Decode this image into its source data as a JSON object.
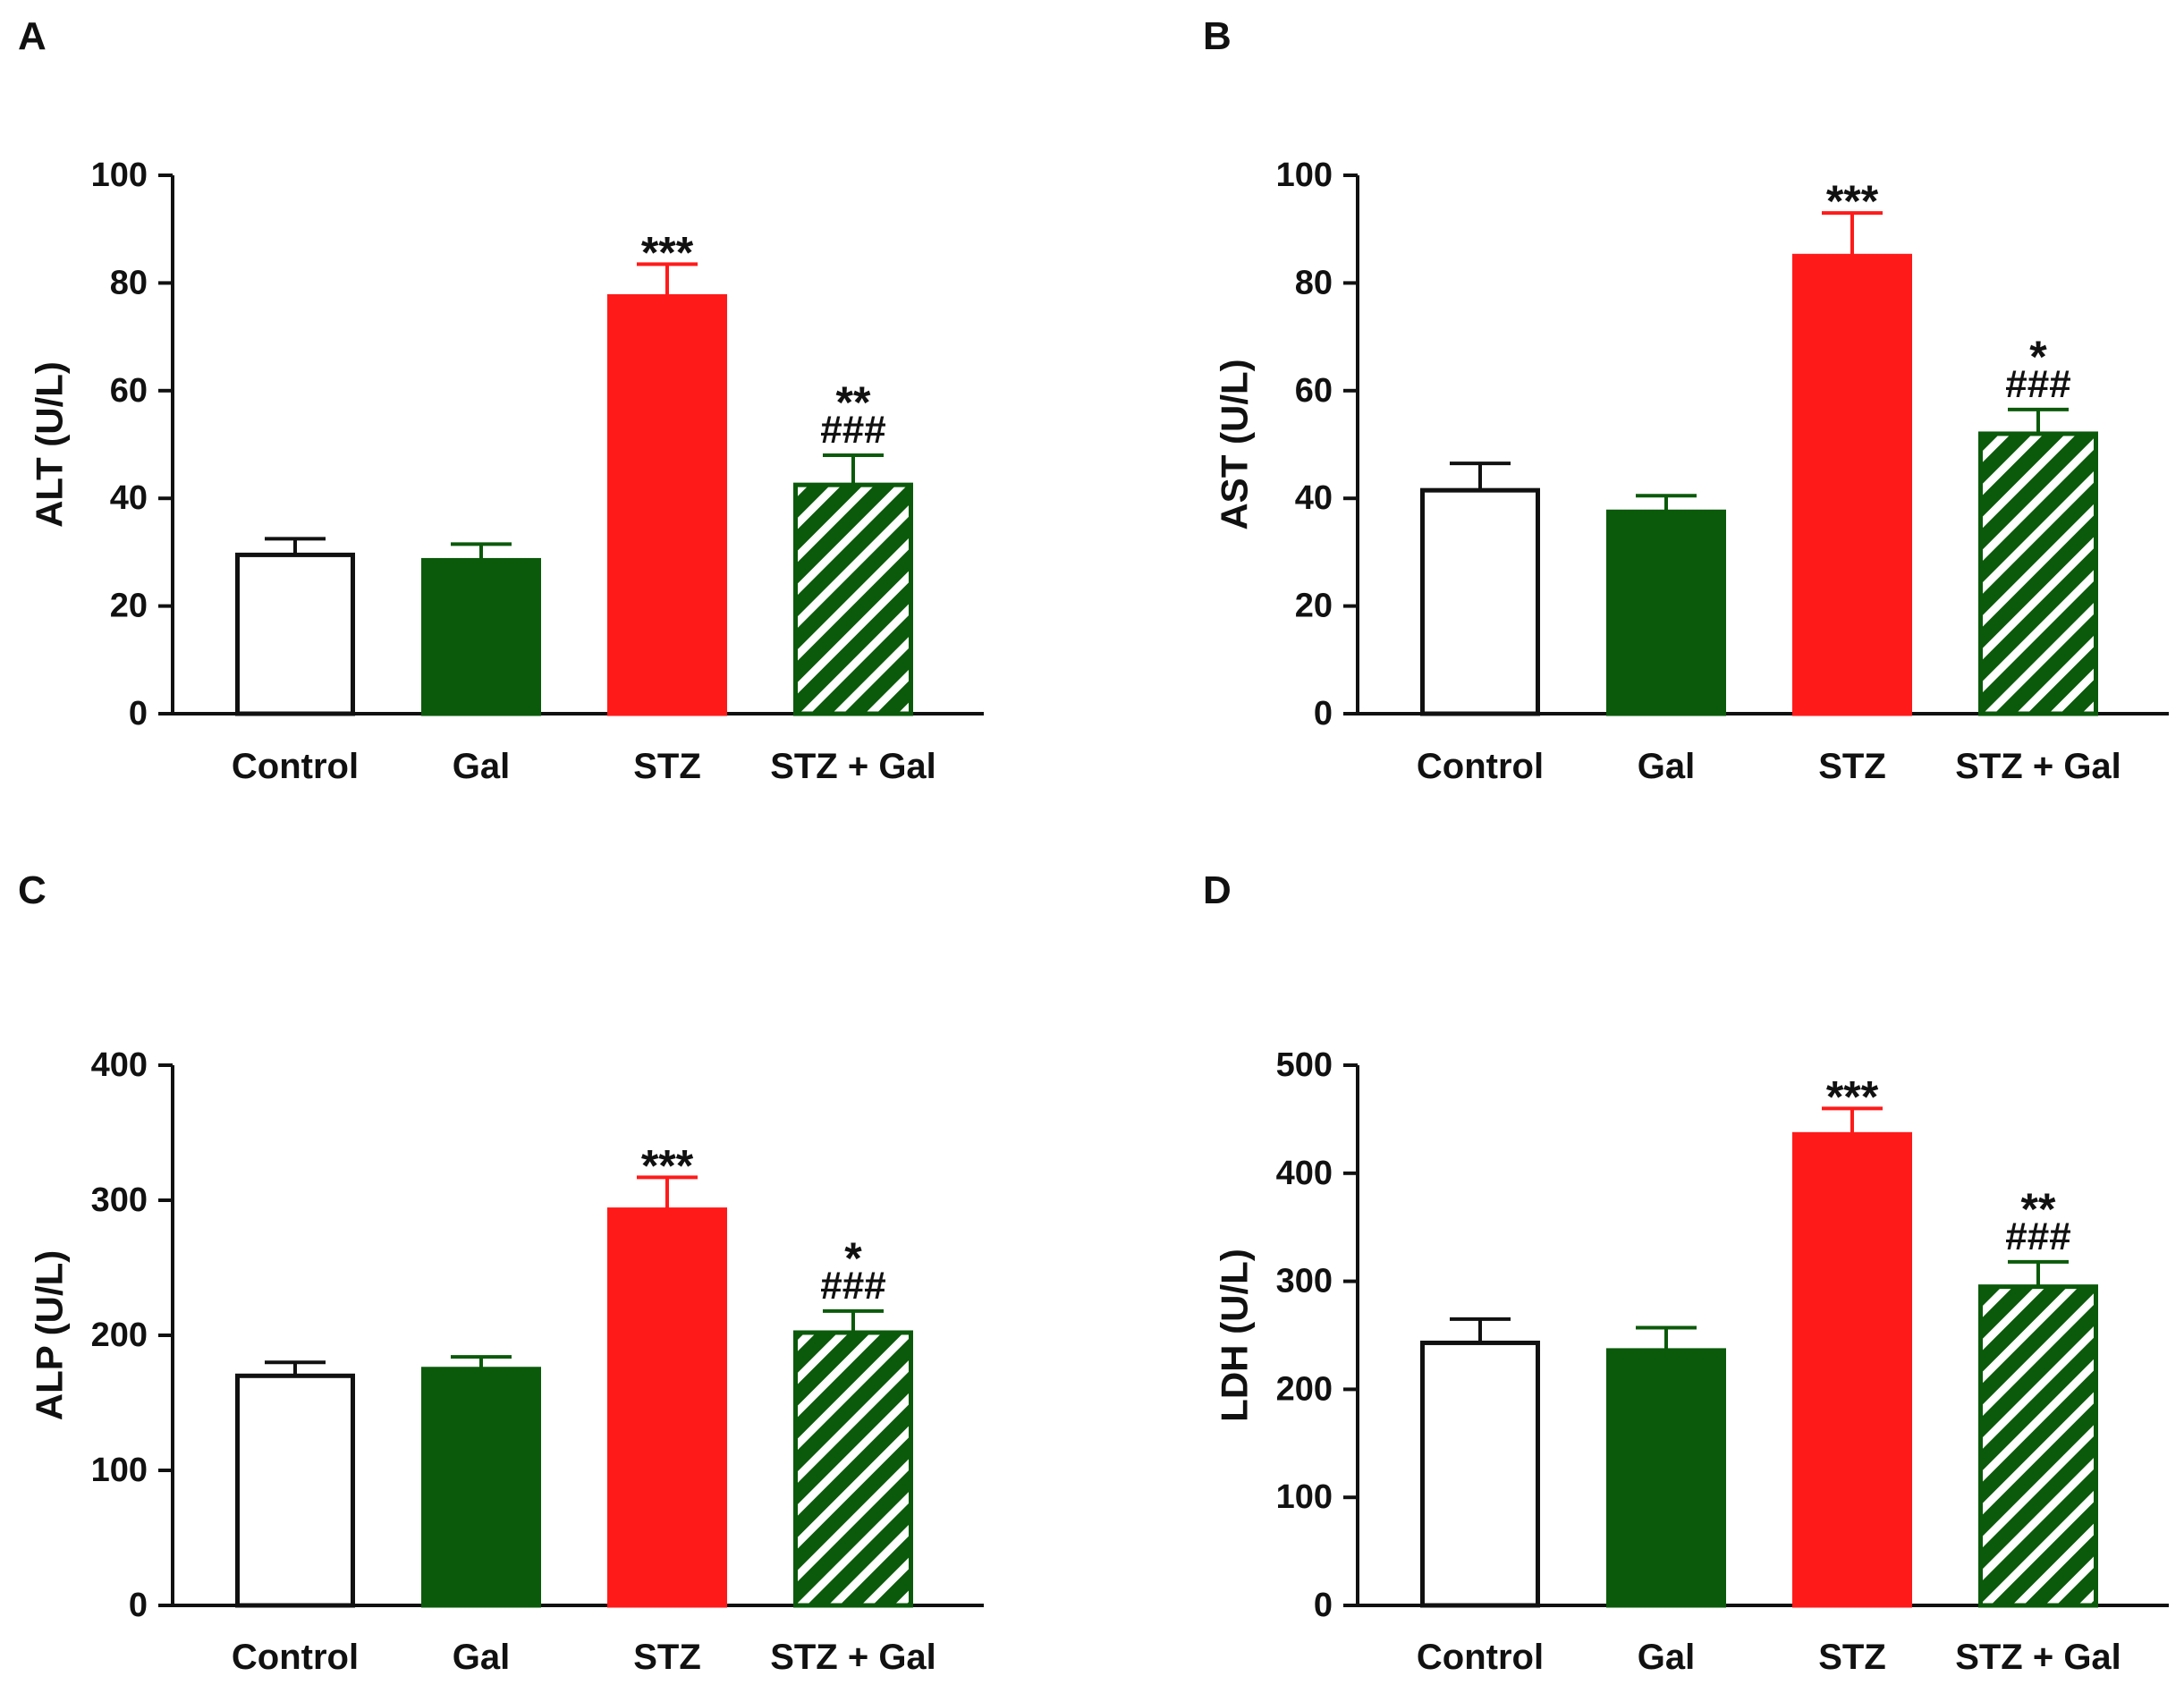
{
  "figure": {
    "background": "#ffffff"
  },
  "colors": {
    "axis": "#111111",
    "control_fill": "#ffffff",
    "control_stroke": "#111111",
    "gal": "#0b5a0b",
    "stz": "#ff1a1a",
    "stz_gal_fill": "#0b5a0b",
    "stz_gal_stroke": "#0b5a0b",
    "stripe": "#ffffff"
  },
  "chart_data": [
    {
      "panel": "A",
      "type": "bar",
      "ylabel": "ALT (U/L)",
      "ylim": [
        0,
        100
      ],
      "yticks": [
        0,
        20,
        40,
        60,
        80,
        100
      ],
      "categories": [
        "Control",
        "Gal",
        "STZ",
        "STZ + Gal"
      ],
      "values": [
        29.5,
        28.5,
        77.5,
        42.5
      ],
      "errors": [
        3,
        3,
        6,
        5.5
      ],
      "annotations": [
        "",
        "",
        "***",
        "**\n###"
      ]
    },
    {
      "panel": "B",
      "type": "bar",
      "ylabel": "AST (U/L)",
      "ylim": [
        0,
        100
      ],
      "yticks": [
        0,
        20,
        40,
        60,
        80,
        100
      ],
      "categories": [
        "Control",
        "Gal",
        "STZ",
        "STZ + Gal"
      ],
      "values": [
        41.5,
        37.5,
        85,
        52
      ],
      "errors": [
        5,
        3,
        8,
        4.5
      ],
      "annotations": [
        "",
        "",
        "***",
        "*\n###"
      ]
    },
    {
      "panel": "C",
      "type": "bar",
      "ylabel": "ALP (U/L)",
      "ylim": [
        0,
        400
      ],
      "yticks": [
        0,
        100,
        200,
        300,
        400
      ],
      "categories": [
        "Control",
        "Gal",
        "STZ",
        "STZ + Gal"
      ],
      "values": [
        170,
        175,
        293,
        202
      ],
      "errors": [
        10,
        9,
        24,
        16
      ],
      "annotations": [
        "",
        "",
        "***",
        "*\n###"
      ]
    },
    {
      "panel": "D",
      "type": "bar",
      "ylabel": "LDH (U/L)",
      "ylim": [
        0,
        500
      ],
      "yticks": [
        0,
        100,
        200,
        300,
        400,
        500
      ],
      "categories": [
        "Control",
        "Gal",
        "STZ",
        "STZ + Gal"
      ],
      "values": [
        243,
        236,
        436,
        295
      ],
      "errors": [
        22,
        21,
        24,
        23
      ],
      "annotations": [
        "",
        "",
        "***",
        "**\n###"
      ]
    }
  ]
}
